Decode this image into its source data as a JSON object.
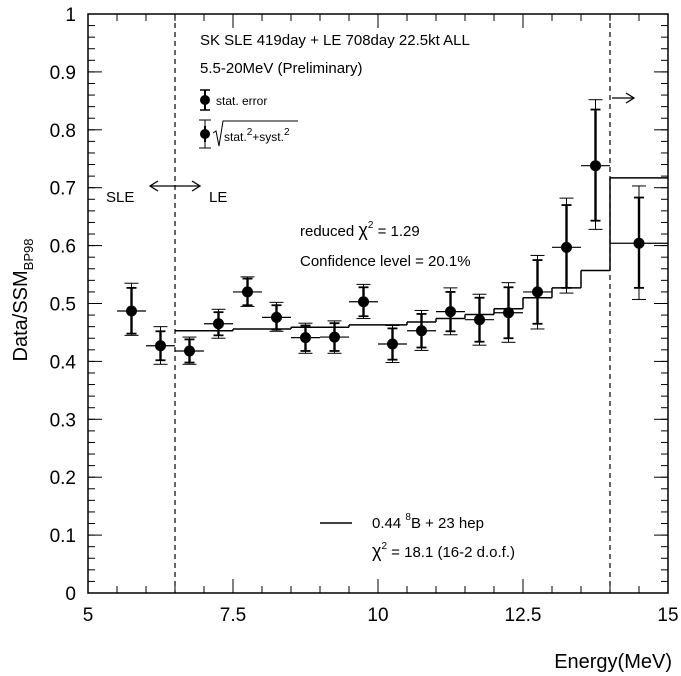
{
  "chart_data": {
    "type": "scatter",
    "xlabel": "Energy(MeV)",
    "ylabel": "Data/SSM",
    "ylabel_subscript": "BP98",
    "xlim": [
      5,
      15
    ],
    "ylim": [
      0,
      1
    ],
    "x_ticks": [
      5,
      7.5,
      10,
      12.5,
      15
    ],
    "x_tick_labels": [
      "5",
      "7.5",
      "10",
      "12.5",
      "15"
    ],
    "y_ticks": [
      0,
      0.1,
      0.2,
      0.3,
      0.4,
      0.5,
      0.6,
      0.7,
      0.8,
      0.9,
      1
    ],
    "y_tick_labels": [
      "0",
      "0.1",
      "0.2",
      "0.3",
      "0.4",
      "0.5",
      "0.6",
      "0.7",
      "0.8",
      "0.9",
      "1"
    ],
    "grid": false,
    "boundaries": [
      6.5,
      14
    ],
    "points": [
      {
        "x": 5.75,
        "xerr": 0.25,
        "y": 0.487,
        "stat": [
          0.448,
          0.527
        ],
        "total": [
          0.445,
          0.535
        ]
      },
      {
        "x": 6.25,
        "xerr": 0.25,
        "y": 0.427,
        "stat": [
          0.402,
          0.452
        ],
        "total": [
          0.395,
          0.46
        ]
      },
      {
        "x": 6.75,
        "xerr": 0.25,
        "y": 0.418,
        "stat": [
          0.398,
          0.438
        ],
        "total": [
          0.395,
          0.442
        ]
      },
      {
        "x": 7.25,
        "xerr": 0.25,
        "y": 0.465,
        "stat": [
          0.445,
          0.485
        ],
        "total": [
          0.44,
          0.49
        ]
      },
      {
        "x": 7.75,
        "xerr": 0.25,
        "y": 0.52,
        "stat": [
          0.497,
          0.543
        ],
        "total": [
          0.495,
          0.546
        ]
      },
      {
        "x": 8.25,
        "xerr": 0.25,
        "y": 0.476,
        "stat": [
          0.455,
          0.497
        ],
        "total": [
          0.452,
          0.502
        ]
      },
      {
        "x": 8.75,
        "xerr": 0.25,
        "y": 0.441,
        "stat": [
          0.418,
          0.462
        ],
        "total": [
          0.414,
          0.466
        ]
      },
      {
        "x": 9.25,
        "xerr": 0.25,
        "y": 0.442,
        "stat": [
          0.418,
          0.466
        ],
        "total": [
          0.414,
          0.47
        ]
      },
      {
        "x": 9.75,
        "xerr": 0.25,
        "y": 0.503,
        "stat": [
          0.478,
          0.528
        ],
        "total": [
          0.474,
          0.533
        ]
      },
      {
        "x": 10.25,
        "xerr": 0.25,
        "y": 0.43,
        "stat": [
          0.403,
          0.457
        ],
        "total": [
          0.398,
          0.462
        ]
      },
      {
        "x": 10.75,
        "xerr": 0.25,
        "y": 0.453,
        "stat": [
          0.424,
          0.482
        ],
        "total": [
          0.419,
          0.488
        ]
      },
      {
        "x": 11.25,
        "xerr": 0.25,
        "y": 0.486,
        "stat": [
          0.452,
          0.52
        ],
        "total": [
          0.446,
          0.527
        ]
      },
      {
        "x": 11.75,
        "xerr": 0.25,
        "y": 0.472,
        "stat": [
          0.434,
          0.51
        ],
        "total": [
          0.428,
          0.516
        ]
      },
      {
        "x": 12.25,
        "xerr": 0.25,
        "y": 0.484,
        "stat": [
          0.44,
          0.528
        ],
        "total": [
          0.433,
          0.536
        ]
      },
      {
        "x": 12.75,
        "xerr": 0.25,
        "y": 0.52,
        "stat": [
          0.465,
          0.575
        ],
        "total": [
          0.456,
          0.583
        ]
      },
      {
        "x": 13.25,
        "xerr": 0.25,
        "y": 0.597,
        "stat": [
          0.527,
          0.67
        ],
        "total": [
          0.518,
          0.682
        ]
      },
      {
        "x": 13.75,
        "xerr": 0.25,
        "y": 0.738,
        "stat": [
          0.643,
          0.835
        ],
        "total": [
          0.628,
          0.852
        ]
      },
      {
        "x": 14.5,
        "xerr": 0.5,
        "y": 0.604,
        "stat": [
          0.527,
          0.683
        ],
        "total": [
          0.507,
          0.703
        ]
      }
    ],
    "model_steps": [
      {
        "x0": 6.5,
        "x1": 7.5,
        "y": 0.453
      },
      {
        "x0": 7.5,
        "x1": 8.5,
        "y": 0.456
      },
      {
        "x0": 8.5,
        "x1": 9.5,
        "y": 0.459
      },
      {
        "x0": 9.5,
        "x1": 10.5,
        "y": 0.463
      },
      {
        "x0": 10.5,
        "x1": 11,
        "y": 0.468
      },
      {
        "x0": 11,
        "x1": 11.5,
        "y": 0.474
      },
      {
        "x0": 11.5,
        "x1": 12,
        "y": 0.481
      },
      {
        "x0": 12,
        "x1": 12.5,
        "y": 0.491
      },
      {
        "x0": 12.5,
        "x1": 13,
        "y": 0.51
      },
      {
        "x0": 13,
        "x1": 13.5,
        "y": 0.527
      },
      {
        "x0": 13.5,
        "x1": 14,
        "y": 0.557
      },
      {
        "x0": 14,
        "x1": 15,
        "y": 0.717
      }
    ],
    "annotations": {
      "title_line1": "SK SLE 419day + LE 708day  22.5kt  ALL",
      "title_line2": "5.5-20MeV  (Preliminary)",
      "legend_stat": "stat. error",
      "legend_total_a": "stat.",
      "legend_total_sup": "2",
      "legend_total_b": "+syst.",
      "sle_label": "SLE",
      "le_label": "LE",
      "reduced_chi_label": "reduced",
      "chi_symbol": "χ",
      "chi_sup": "2",
      "reduced_chi_value": " = 1.29",
      "confidence": "Confidence level = 20.1%",
      "model_coef": "0.44 ",
      "model_sup": "8",
      "model_tail": "B + 23 hep",
      "model_chi_value": " = 18.1 (16-2 d.o.f.)"
    }
  }
}
